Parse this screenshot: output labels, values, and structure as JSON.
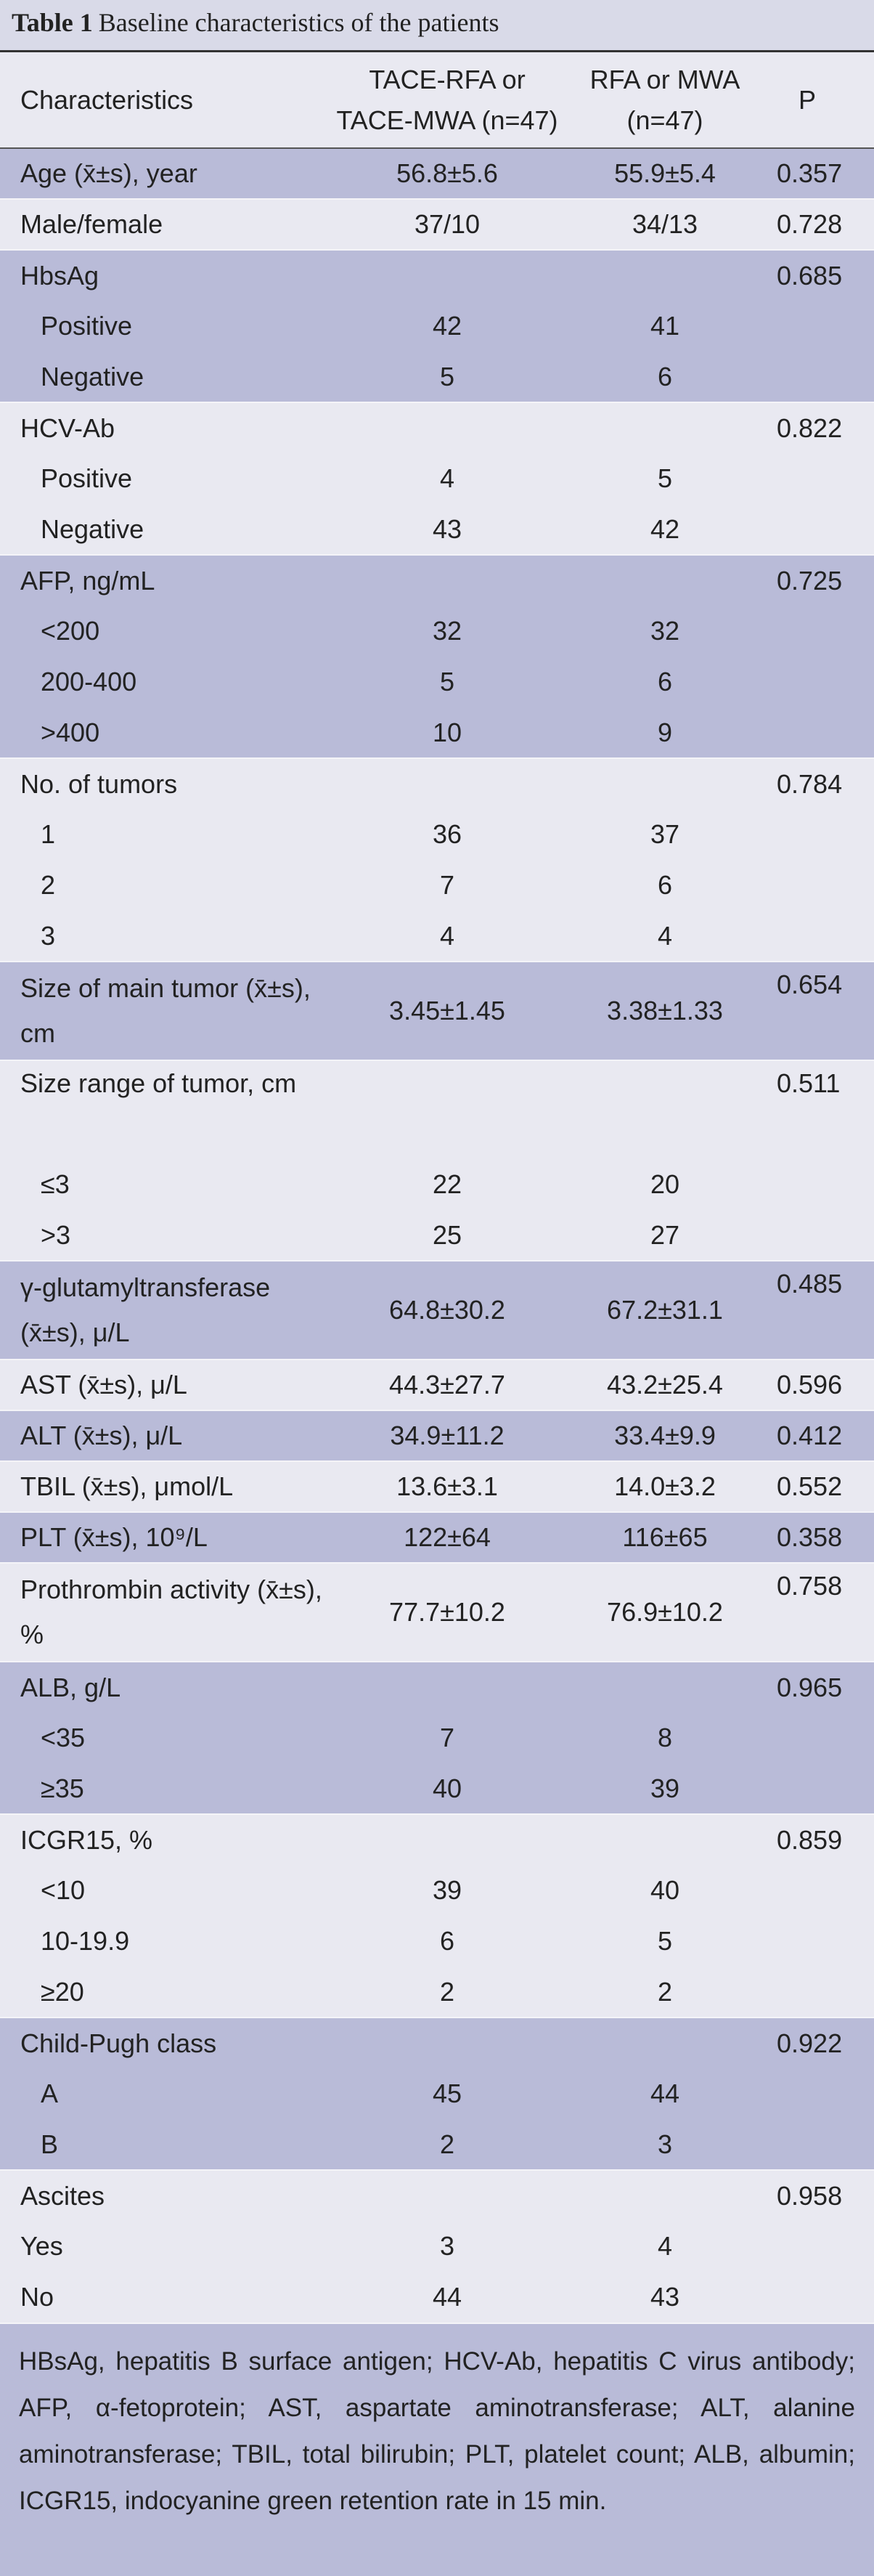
{
  "table": {
    "title_label": "Table 1",
    "title": "Baseline characteristics of the patients",
    "header": [
      "Characteristics",
      "TACE-RFA or TACE-MWA (n=47)",
      "RFA or MWA (n=47)",
      "P"
    ],
    "groups": [
      {
        "rows": [
          [
            "Age (x̄±s), year",
            "56.8±5.6",
            "55.9±5.4",
            "0.357"
          ]
        ]
      },
      {
        "rows": [
          [
            "Male/female",
            "37/10",
            "34/13",
            "0.728"
          ]
        ]
      },
      {
        "rows": [
          [
            "HbsAg",
            null,
            null,
            "0.685"
          ],
          [
            "Positive",
            "42",
            "41",
            null
          ],
          [
            "Negative",
            "5",
            "6",
            null
          ]
        ]
      },
      {
        "rows": [
          [
            "HCV-Ab",
            null,
            null,
            "0.822"
          ],
          [
            "Positive",
            "4",
            "5",
            null
          ],
          [
            "Negative",
            "43",
            "42",
            null
          ]
        ]
      },
      {
        "rows": [
          [
            "AFP, ng/mL",
            null,
            null,
            "0.725"
          ],
          [
            "<200",
            "32",
            "32",
            null
          ],
          [
            "200-400",
            "5",
            "6",
            null
          ],
          [
            ">400",
            "10",
            "9",
            null
          ]
        ]
      },
      {
        "rows": [
          [
            "No. of tumors",
            null,
            null,
            "0.784"
          ],
          [
            "1",
            "36",
            "37",
            null
          ],
          [
            "2",
            "7",
            "6",
            null
          ],
          [
            "3",
            "4",
            "4",
            null
          ]
        ]
      },
      {
        "rows": [
          [
            "Size of main tumor (x̄±s), cm",
            "3.45±1.45",
            "3.38±1.33",
            "0.654"
          ]
        ]
      },
      {
        "rows": [
          [
            "Size range of tumor, cm",
            null,
            null,
            "0.511"
          ],
          [
            "≤3",
            "22",
            "20",
            null
          ],
          [
            ">3",
            "25",
            "27",
            null
          ]
        ]
      },
      {
        "rows": [
          [
            "γ-glutamyltransferase (x̄±s), μ/L",
            "64.8±30.2",
            "67.2±31.1",
            "0.485"
          ]
        ]
      },
      {
        "rows": [
          [
            "AST (x̄±s), μ/L",
            "44.3±27.7",
            "43.2±25.4",
            "0.596"
          ]
        ]
      },
      {
        "rows": [
          [
            "ALT (x̄±s), μ/L",
            "34.9±11.2",
            "33.4±9.9",
            "0.412"
          ]
        ]
      },
      {
        "rows": [
          [
            "TBIL (x̄±s), μmol/L",
            "13.6±3.1",
            "14.0±3.2",
            "0.552"
          ]
        ]
      },
      {
        "rows": [
          [
            "PLT (x̄±s), 10⁹/L",
            "122±64",
            "116±65",
            "0.358"
          ]
        ]
      },
      {
        "rows": [
          [
            "Prothrombin activity (x̄±s), %",
            "77.7±10.2",
            "76.9±10.2",
            "0.758"
          ]
        ]
      },
      {
        "rows": [
          [
            "ALB, g/L",
            null,
            null,
            "0.965"
          ],
          [
            "<35",
            "7",
            "8",
            null
          ],
          [
            "≥35",
            "40",
            "39",
            null
          ]
        ]
      },
      {
        "rows": [
          [
            "ICGR15, %",
            null,
            null,
            "0.859"
          ],
          [
            "<10",
            "39",
            "40",
            null
          ],
          [
            "10-19.9",
            "6",
            "5",
            null
          ],
          [
            "≥20",
            "2",
            "2",
            null
          ]
        ]
      },
      {
        "rows": [
          [
            "Child-Pugh class",
            null,
            null,
            "0.922"
          ],
          [
            "A",
            "45",
            "44",
            null
          ],
          [
            "B",
            "2",
            "3",
            null
          ]
        ]
      },
      {
        "rows": [
          [
            "Ascites",
            null,
            null,
            "0.958"
          ],
          [
            "Yes",
            "3",
            "4",
            null
          ],
          [
            "No",
            "44",
            "43",
            null
          ]
        ]
      }
    ],
    "footnote": "HBsAg, hepatitis B surface antigen; HCV-Ab, hepatitis C virus antibody; AFP, α-fetoprotein; AST, aspartate aminotransferase; ALT, alanine aminotransferase; TBIL, total bilirubin; PLT, platelet count; ALB, albumin; ICGR15, indocyanine green retention rate in 15 min."
  }
}
